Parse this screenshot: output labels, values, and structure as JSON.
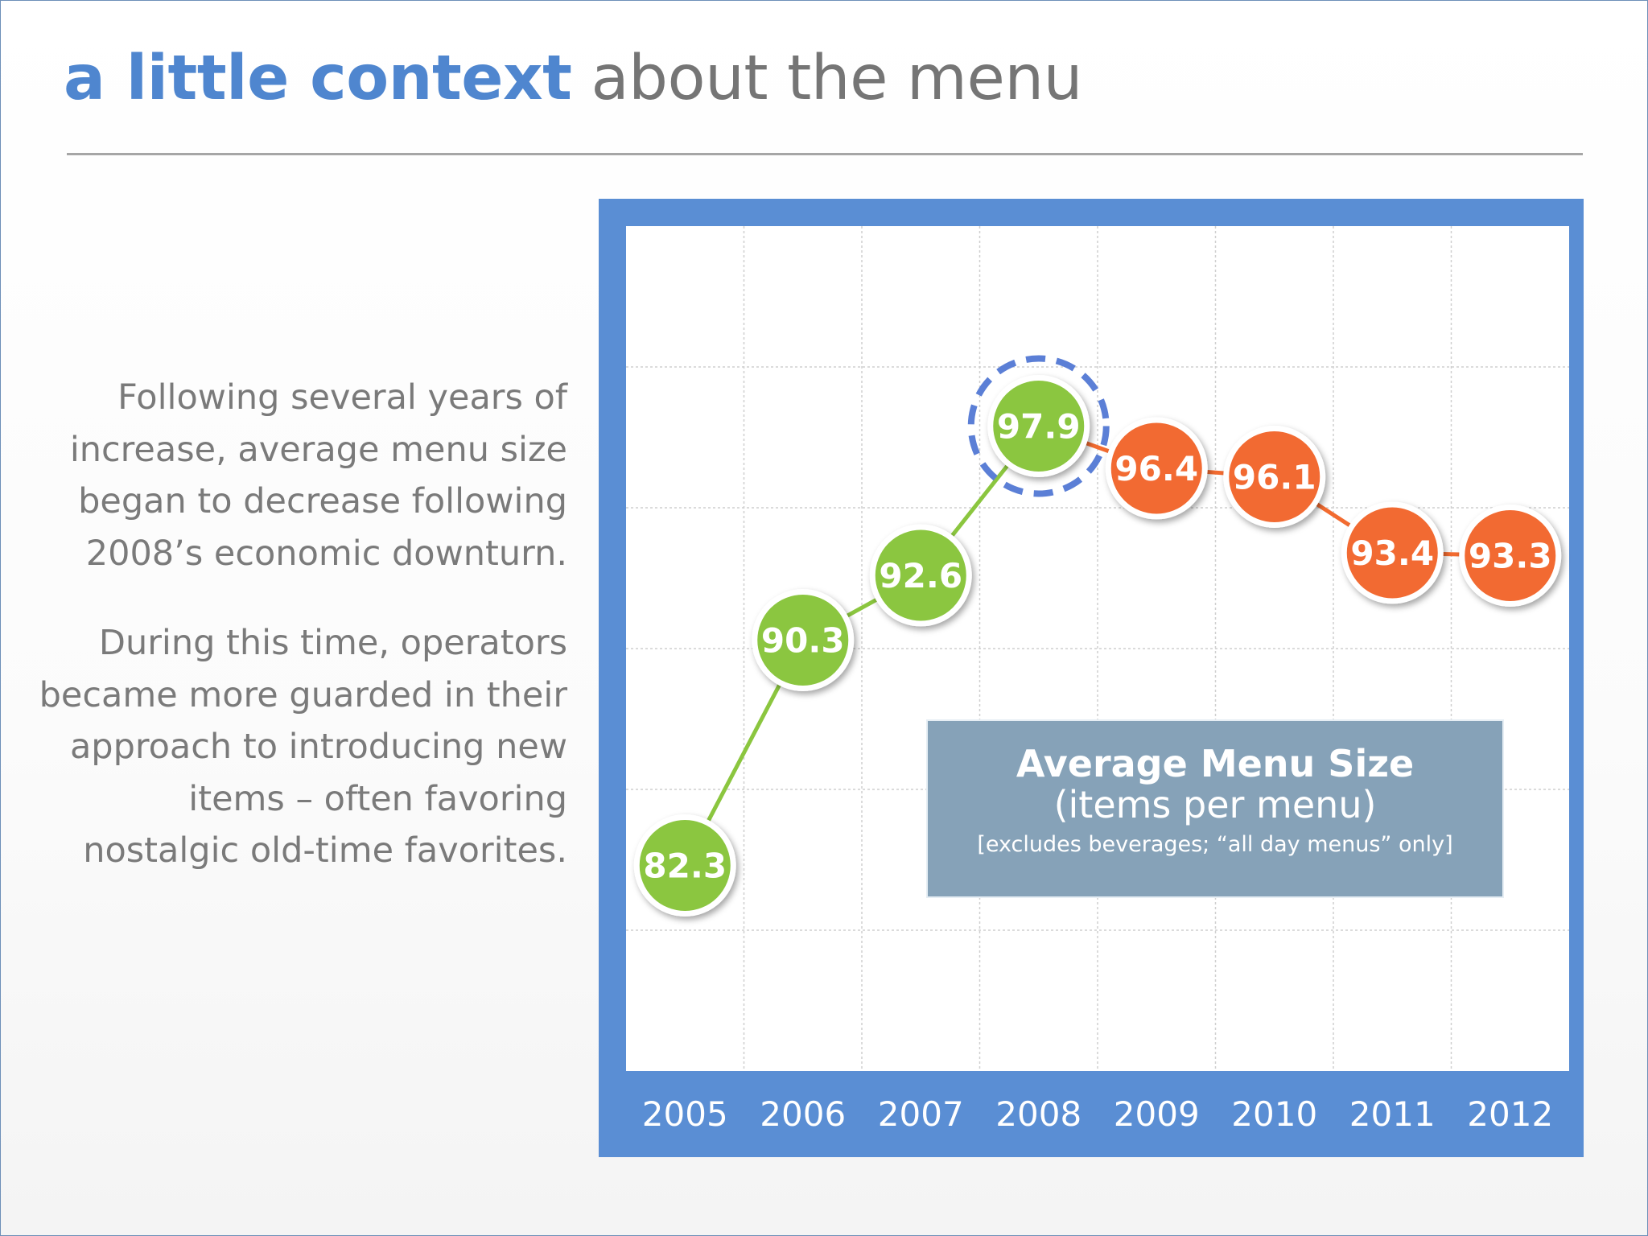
{
  "slide": {
    "title_emphasis": "a little context",
    "title_rest": "about the menu",
    "paragraph_1": "Following several years of increase, average menu size began to decrease following 2008’s economic downturn.",
    "paragraph_2": "During this time, operators became more guarded in their approach to introducing new items – often favoring nostalgic old-time favorites."
  },
  "legend": {
    "title": "Average Menu Size",
    "subtitle": "(items per menu)",
    "note": "[excludes beverages; “all day menus” only]"
  },
  "colors": {
    "frame": "#5a8ed4",
    "rising": "#8bc63f",
    "falling": "#f26b30",
    "highlight_ring": "#5b7fd6",
    "title_accent": "#4f86cf"
  },
  "chart_data": {
    "type": "line",
    "title": "Average Menu Size",
    "subtitle": "(items per menu)",
    "note": "[excludes beverages; “all day menus” only]",
    "categories": [
      "2005",
      "2006",
      "2007",
      "2008",
      "2009",
      "2010",
      "2011",
      "2012"
    ],
    "values": [
      82.3,
      90.3,
      92.6,
      97.9,
      96.4,
      96.1,
      93.4,
      93.3
    ],
    "labels": [
      "82.3",
      "90.3",
      "92.6",
      "97.9",
      "96.4",
      "96.1",
      "93.4",
      "93.3"
    ],
    "segments": [
      "rising",
      "rising",
      "rising",
      "rising",
      "falling",
      "falling",
      "falling",
      "falling"
    ],
    "highlighted": "2008",
    "ylim": [
      75,
      105
    ],
    "grid": true,
    "xlabel": "",
    "ylabel": ""
  }
}
